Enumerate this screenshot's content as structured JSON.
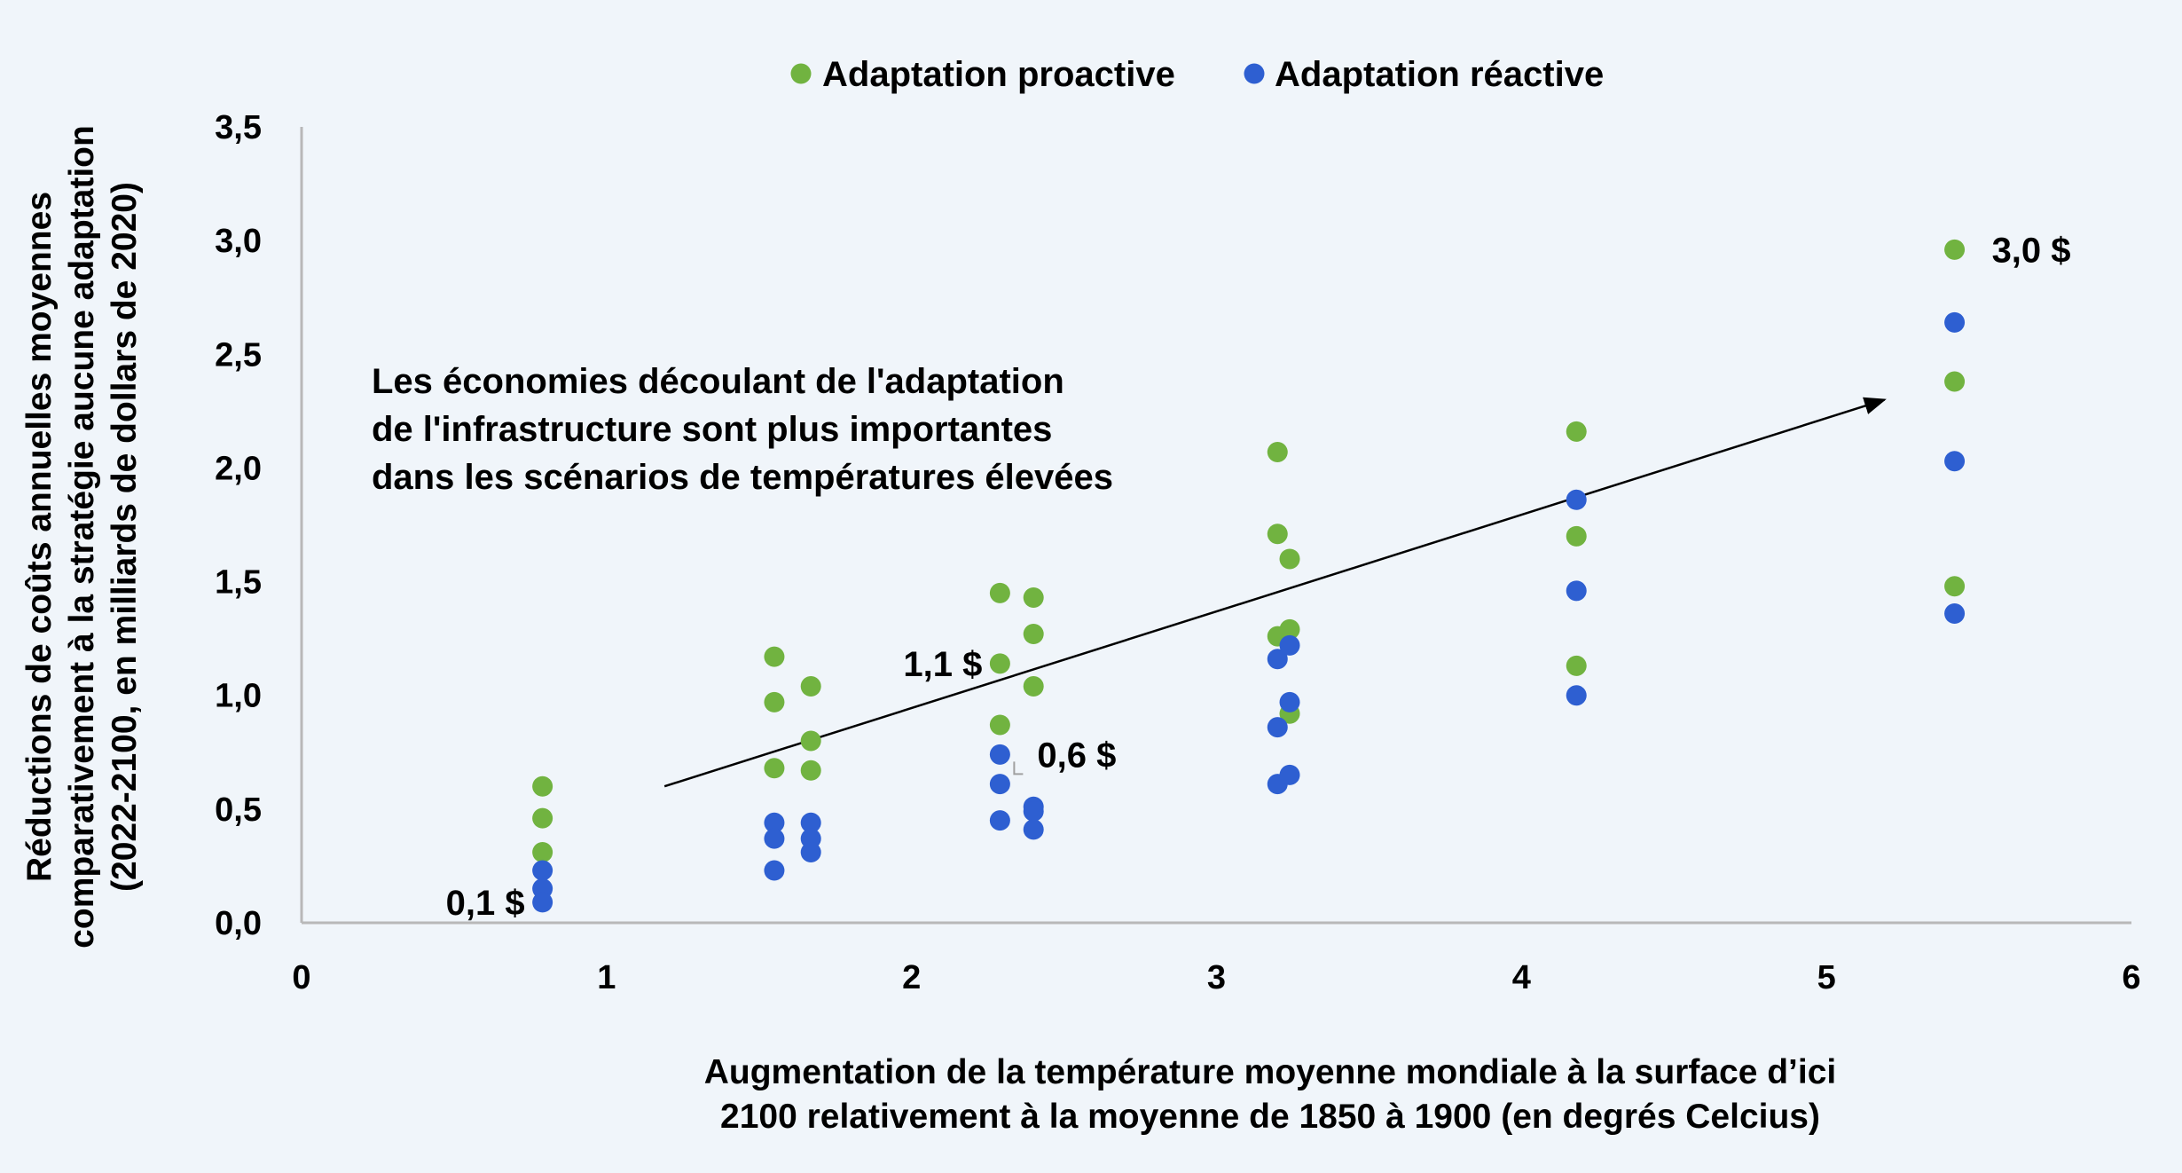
{
  "chart_data": {
    "type": "scatter",
    "title": "",
    "legend": {
      "position": "top-center"
    },
    "xlabel_lines": [
      "Augmentation de la température moyenne mondiale à la surface d’ici",
      "2100 relativement à la moyenne de 1850 à 1900 (en degrés Celcius)"
    ],
    "ylabel_lines": [
      "Réductions de coûts annuelles moyennes",
      "comparativement à la stratégie aucune adaptation",
      "(2022-2100, en milliards de dollars de 2020)"
    ],
    "xlim": [
      0,
      6
    ],
    "ylim": [
      0,
      3.5
    ],
    "x_ticks": [
      0,
      1,
      2,
      3,
      4,
      5,
      6
    ],
    "x_tick_labels": [
      "0",
      "1",
      "2",
      "3",
      "4",
      "5",
      "6"
    ],
    "y_ticks": [
      0,
      0.5,
      1,
      1.5,
      2,
      2.5,
      3,
      3.5
    ],
    "y_tick_labels": [
      "0,0",
      "0,5",
      "1,0",
      "1,5",
      "2,0",
      "2,5",
      "3,0",
      "3,5"
    ],
    "grid": false,
    "series": [
      {
        "name": "Adaptation proactive",
        "color": "#71b340",
        "points": [
          [
            0.79,
            0.6
          ],
          [
            0.79,
            0.46
          ],
          [
            0.79,
            0.31
          ],
          [
            1.55,
            1.17
          ],
          [
            1.55,
            0.97
          ],
          [
            1.55,
            0.68
          ],
          [
            1.67,
            1.04
          ],
          [
            1.67,
            0.8
          ],
          [
            1.67,
            0.67
          ],
          [
            2.29,
            1.45
          ],
          [
            2.29,
            1.14
          ],
          [
            2.29,
            0.87
          ],
          [
            2.4,
            1.43
          ],
          [
            2.4,
            1.27
          ],
          [
            2.4,
            1.04
          ],
          [
            3.2,
            2.07
          ],
          [
            3.2,
            1.71
          ],
          [
            3.2,
            1.26
          ],
          [
            3.24,
            1.6
          ],
          [
            3.24,
            1.29
          ],
          [
            3.24,
            0.92
          ],
          [
            4.18,
            2.16
          ],
          [
            4.18,
            1.7
          ],
          [
            4.18,
            1.13
          ],
          [
            5.42,
            2.96
          ],
          [
            5.42,
            2.38
          ],
          [
            5.42,
            1.48
          ]
        ]
      },
      {
        "name": "Adaptation réactive",
        "color": "#2e5fd1",
        "points": [
          [
            0.79,
            0.23
          ],
          [
            0.79,
            0.15
          ],
          [
            0.79,
            0.09
          ],
          [
            1.55,
            0.44
          ],
          [
            1.55,
            0.37
          ],
          [
            1.55,
            0.23
          ],
          [
            1.67,
            0.44
          ],
          [
            1.67,
            0.37
          ],
          [
            1.67,
            0.31
          ],
          [
            2.29,
            0.74
          ],
          [
            2.29,
            0.61
          ],
          [
            2.29,
            0.45
          ],
          [
            2.4,
            0.51
          ],
          [
            2.4,
            0.49
          ],
          [
            2.4,
            0.41
          ],
          [
            3.2,
            1.16
          ],
          [
            3.2,
            0.86
          ],
          [
            3.2,
            0.61
          ],
          [
            3.24,
            1.22
          ],
          [
            3.24,
            0.97
          ],
          [
            3.24,
            0.65
          ],
          [
            4.18,
            1.86
          ],
          [
            4.18,
            1.46
          ],
          [
            4.18,
            1.0
          ],
          [
            5.42,
            2.64
          ],
          [
            5.42,
            2.03
          ],
          [
            5.42,
            1.36
          ]
        ]
      }
    ],
    "annotations": [
      {
        "text": "0,1 $",
        "x": 0.79,
        "y": 0.09,
        "position": "left"
      },
      {
        "text": "1,1 $",
        "x": 2.29,
        "y": 1.14,
        "position": "left"
      },
      {
        "text": "0,6 $",
        "x": 2.29,
        "y": 0.74,
        "position": "right"
      },
      {
        "text": "3,0 $",
        "x": 5.42,
        "y": 2.96,
        "position": "right"
      }
    ],
    "callout_lines": [
      "Les économies découlant de l'adaptation",
      "de l'infrastructure sont plus importantes",
      "dans les scénarios de températures élevées"
    ],
    "arrow": {
      "from": [
        1.19,
        0.6
      ],
      "to": [
        5.19,
        2.3
      ]
    }
  }
}
